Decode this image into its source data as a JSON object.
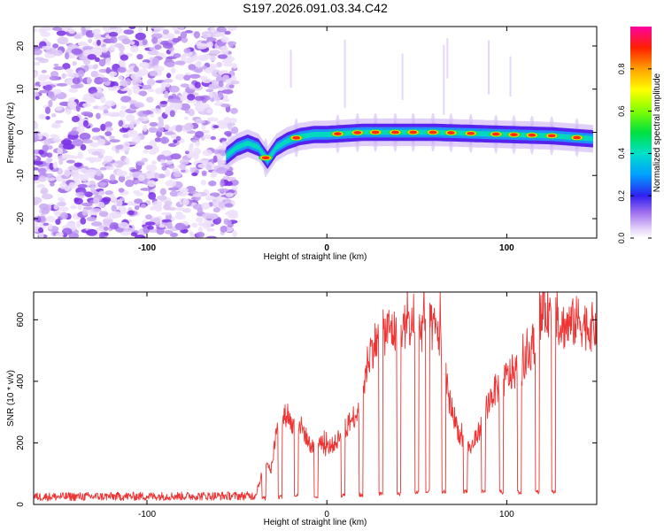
{
  "title": "S197.2026.091.03.34.C42",
  "chart_data": [
    {
      "type": "heatmap",
      "xlabel": "Height of straight line (km)",
      "ylabel": "Frequency (Hz)",
      "xlim": [
        -163,
        150
      ],
      "ylim": [
        -24.5,
        24.5
      ],
      "x_ticks": [
        -100,
        0,
        100
      ],
      "y_ticks": [
        -20,
        -10,
        0,
        10,
        20
      ],
      "noise_region_x": [
        -163,
        -51
      ],
      "ridge": [
        {
          "x": -56,
          "y": -5.5
        },
        {
          "x": -50,
          "y": -3.5
        },
        {
          "x": -44,
          "y": -2.5
        },
        {
          "x": -38,
          "y": -3.5
        },
        {
          "x": -33,
          "y": -6.5
        },
        {
          "x": -28,
          "y": -3.5
        },
        {
          "x": -22,
          "y": -2
        },
        {
          "x": -15,
          "y": -1
        },
        {
          "x": -7,
          "y": -0.5
        },
        {
          "x": 0,
          "y": -0.5
        },
        {
          "x": 20,
          "y": 0
        },
        {
          "x": 60,
          "y": 0
        },
        {
          "x": 100,
          "y": -0.5
        },
        {
          "x": 125,
          "y": -0.8
        },
        {
          "x": 148,
          "y": -1.5
        }
      ],
      "hotspots_x": [
        -34,
        -17,
        6,
        17,
        27,
        38,
        48,
        59,
        69,
        80,
        94,
        104,
        114,
        125,
        139
      ],
      "colorbar": {
        "label": "Normalized spectral amplitude",
        "range": [
          0,
          1
        ],
        "ticks": [
          0.0,
          0.2,
          0.4,
          0.6,
          0.8
        ]
      }
    },
    {
      "type": "line",
      "xlabel": "Height of straight line (km)",
      "ylabel": "SNR (10 * v/v)",
      "xlim": [
        -163,
        150
      ],
      "ylim": [
        0,
        690
      ],
      "x_ticks": [
        -100,
        0,
        100
      ],
      "y_ticks": [
        0,
        200,
        400,
        600
      ],
      "series": [
        {
          "name": "SNR",
          "color": "#ee3333",
          "x": [
            -163,
            -40,
            -37,
            -34,
            -31,
            -28,
            -25,
            -22,
            -19,
            -16,
            -13,
            -10,
            -7,
            -4,
            -1,
            2,
            5,
            8,
            11,
            14,
            17,
            20,
            23,
            26,
            29,
            32,
            35,
            38,
            41,
            44,
            47,
            50,
            53,
            56,
            59,
            62,
            65,
            68,
            71,
            74,
            77,
            80,
            83,
            86,
            89,
            92,
            95,
            98,
            101,
            104,
            107,
            110,
            113,
            116,
            119,
            122,
            125,
            128,
            131,
            134,
            137,
            140,
            143,
            146,
            150
          ],
          "y": [
            25,
            28,
            80,
            150,
            110,
            240,
            270,
            300,
            250,
            270,
            240,
            200,
            180,
            220,
            180,
            190,
            200,
            230,
            250,
            280,
            300,
            360,
            480,
            520,
            540,
            560,
            570,
            560,
            570,
            580,
            575,
            565,
            570,
            580,
            570,
            560,
            450,
            340,
            280,
            220,
            200,
            180,
            220,
            260,
            320,
            360,
            380,
            400,
            420,
            430,
            440,
            450,
            500,
            540,
            600,
            640,
            620,
            600,
            580,
            580,
            590,
            600,
            585,
            575,
            580
          ]
        }
      ],
      "dips": [
        {
          "x": [
            -36,
            -34
          ],
          "level": 20
        },
        {
          "x": [
            -27,
            -25
          ],
          "level": 25
        },
        {
          "x": [
            -18,
            -16
          ],
          "level": 30
        },
        {
          "x": [
            -7,
            -5
          ],
          "level": 25
        },
        {
          "x": [
            8,
            10
          ],
          "level": 30
        },
        {
          "x": [
            18,
            20
          ],
          "level": 30
        },
        {
          "x": [
            29,
            31
          ],
          "level": 35
        },
        {
          "x": [
            39,
            41
          ],
          "level": 35
        },
        {
          "x": [
            49,
            51
          ],
          "level": 40
        },
        {
          "x": [
            55,
            57
          ],
          "level": 40
        },
        {
          "x": [
            64,
            66
          ],
          "level": 40
        },
        {
          "x": [
            76,
            78
          ],
          "level": 40
        },
        {
          "x": [
            86,
            88
          ],
          "level": 40
        },
        {
          "x": [
            96,
            98
          ],
          "level": 40
        },
        {
          "x": [
            106,
            108
          ],
          "level": 40
        },
        {
          "x": [
            116,
            118
          ],
          "level": 40
        },
        {
          "x": [
            125,
            127
          ],
          "level": 40
        }
      ]
    }
  ]
}
